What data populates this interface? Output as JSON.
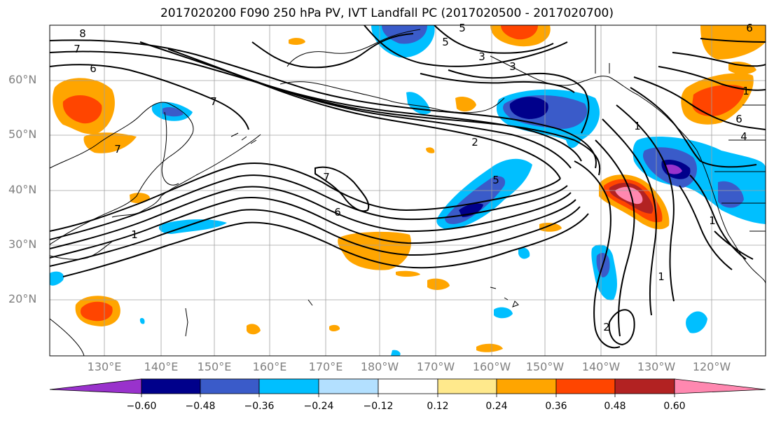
{
  "title": "2017020200 F090 250 hPa PV, IVT Landfall PC (2017020500 - 2017020700)",
  "latitude_labels": [
    "60°N",
    "50°N",
    "40°N",
    "30°N",
    "20°N"
  ],
  "longitude_labels": [
    "130°E",
    "140°E",
    "150°E",
    "160°E",
    "170°E",
    "180°W",
    "170°W",
    "160°W",
    "150°W",
    "140°W",
    "130°W",
    "120°W"
  ],
  "contour_labels": [
    "8",
    "7",
    "6",
    "7",
    "1",
    "7",
    "6",
    "5",
    "3",
    "2",
    "5",
    "5",
    "6",
    "3",
    "1",
    "6",
    "4",
    "1",
    "1",
    "2",
    "1",
    "7"
  ],
  "colorbar": {
    "tick_labels": [
      "−0.60",
      "−0.48",
      "−0.36",
      "−0.24",
      "−0.12",
      "0.12",
      "0.24",
      "0.36",
      "0.48",
      "0.60"
    ],
    "colors": [
      "#9932cc",
      "#00008b",
      "#3a5bc9",
      "#00bfff",
      "#b3e0ff",
      "#ffffff",
      "#ffe98c",
      "#ffa500",
      "#ff4500",
      "#b22222",
      "#ff88b0"
    ]
  }
}
